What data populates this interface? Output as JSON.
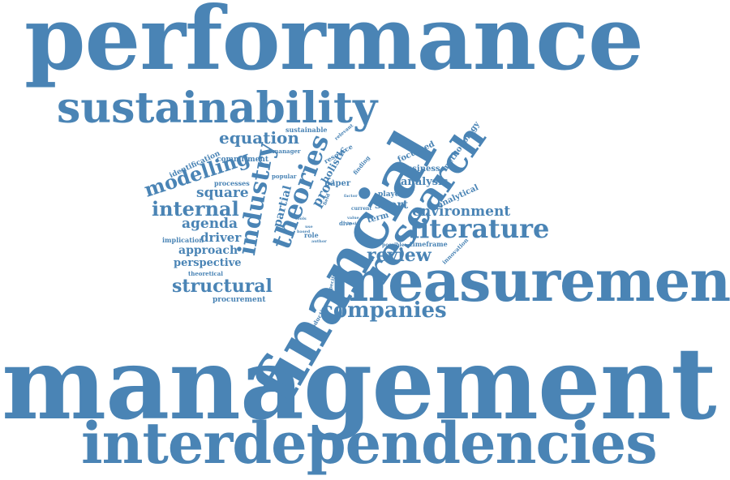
{
  "color": "#4a84b5",
  "words": {
    "performance": "performance",
    "sustainability": "sustainability",
    "management": "management",
    "interdependencies": "interdependencies",
    "measurement": "measurement",
    "financial": "financial",
    "research": "research",
    "literature": "literature",
    "companies": "companies",
    "industry": "industry",
    "theories": "theories",
    "modelling": "modelling",
    "internal": "internal",
    "equation": "equation",
    "square": "square",
    "agenda": "agenda",
    "driver": "driver",
    "approach": "approach",
    "perspective": "perspective",
    "structural": "structural",
    "procurement": "procurement",
    "theoretical": "theoretical",
    "implication": "implication",
    "identification": "identification",
    "commitment": "commitment",
    "processes": "processes",
    "manager": "manager",
    "sustainable": "sustainable",
    "relevant": "relevant",
    "resource": "resource",
    "holistic": "holistic",
    "popular": "popular",
    "partial": "partial",
    "proc": "proc",
    "paper": "paper",
    "finding": "finding",
    "focussed": "focussed",
    "methodology": "methodology",
    "business": "business",
    "analysis": "analysis",
    "played": "played",
    "short": "short",
    "term": "term",
    "current": "current",
    "analytical": "analytical",
    "environment": "environment",
    "review": "review",
    "timeframe": "timeframe",
    "possible": "possible",
    "innovation": "innovation",
    "role": "role",
    "dive": "dive",
    "specific": "specific",
    "production": "production",
    "author": "author",
    "field": "field",
    "value": "value",
    "basis": "basis",
    "factor": "factor",
    "tools": "tools",
    "based": "based",
    "use": "use"
  }
}
